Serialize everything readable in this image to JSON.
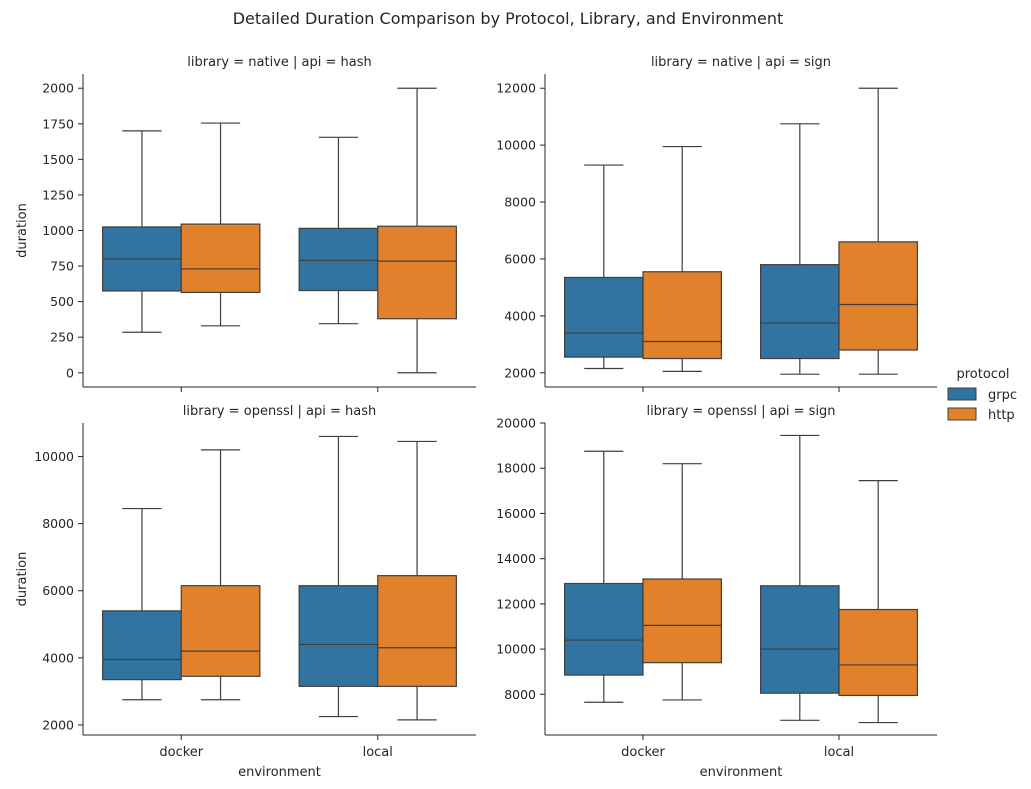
{
  "figure": {
    "title": "Detailed Duration Comparison by Protocol, Library, and Environment"
  },
  "legend": {
    "title": "protocol",
    "entries": [
      {
        "label": "grpc",
        "color": "#3274a1"
      },
      {
        "label": "http",
        "color": "#e1812c"
      }
    ]
  },
  "chart_data": [
    {
      "type": "box",
      "title": "library = native | api = hash",
      "xlabel": "",
      "ylabel": "duration",
      "categories": [
        "docker",
        "local"
      ],
      "ylim": [
        -100,
        2100
      ],
      "yticks": [
        0,
        250,
        500,
        750,
        1000,
        1250,
        1500,
        1750,
        2000
      ],
      "series": [
        {
          "name": "grpc",
          "color": "#3274a1",
          "boxes": [
            {
              "min": 285,
              "q1": 575,
              "median": 800,
              "q3": 1025,
              "max": 1700
            },
            {
              "min": 345,
              "q1": 578,
              "median": 790,
              "q3": 1015,
              "max": 1655
            }
          ]
        },
        {
          "name": "http",
          "color": "#e1812c",
          "boxes": [
            {
              "min": 330,
              "q1": 565,
              "median": 730,
              "q3": 1045,
              "max": 1755
            },
            {
              "min": 0,
              "q1": 380,
              "median": 785,
              "q3": 1030,
              "max": 2000
            }
          ]
        }
      ]
    },
    {
      "type": "box",
      "title": "library = native | api = sign",
      "xlabel": "",
      "ylabel": "",
      "categories": [
        "docker",
        "local"
      ],
      "ylim": [
        1500,
        12500
      ],
      "yticks": [
        2000,
        4000,
        6000,
        8000,
        10000,
        12000
      ],
      "series": [
        {
          "name": "grpc",
          "color": "#3274a1",
          "boxes": [
            {
              "min": 2150,
              "q1": 2550,
              "median": 3400,
              "q3": 5350,
              "max": 9300
            },
            {
              "min": 1950,
              "q1": 2500,
              "median": 3750,
              "q3": 5800,
              "max": 10750
            }
          ]
        },
        {
          "name": "http",
          "color": "#e1812c",
          "boxes": [
            {
              "min": 2050,
              "q1": 2500,
              "median": 3100,
              "q3": 5550,
              "max": 9950
            },
            {
              "min": 1950,
              "q1": 2800,
              "median": 4400,
              "q3": 6600,
              "max": 12000
            }
          ]
        }
      ]
    },
    {
      "type": "box",
      "title": "library = openssl | api = hash",
      "xlabel": "environment",
      "ylabel": "duration",
      "categories": [
        "docker",
        "local"
      ],
      "ylim": [
        1700,
        11000
      ],
      "yticks": [
        2000,
        4000,
        6000,
        8000,
        10000
      ],
      "series": [
        {
          "name": "grpc",
          "color": "#3274a1",
          "boxes": [
            {
              "min": 2750,
              "q1": 3350,
              "median": 3950,
              "q3": 5400,
              "max": 8450
            },
            {
              "min": 2250,
              "q1": 3150,
              "median": 4400,
              "q3": 6150,
              "max": 10600
            }
          ]
        },
        {
          "name": "http",
          "color": "#e1812c",
          "boxes": [
            {
              "min": 2750,
              "q1": 3450,
              "median": 4200,
              "q3": 6150,
              "max": 10200
            },
            {
              "min": 2150,
              "q1": 3150,
              "median": 4300,
              "q3": 6450,
              "max": 10450
            }
          ]
        }
      ]
    },
    {
      "type": "box",
      "title": "library = openssl | api = sign",
      "xlabel": "environment",
      "ylabel": "",
      "categories": [
        "docker",
        "local"
      ],
      "ylim": [
        6200,
        20000
      ],
      "yticks": [
        8000,
        10000,
        12000,
        14000,
        16000,
        18000,
        20000
      ],
      "series": [
        {
          "name": "grpc",
          "color": "#3274a1",
          "boxes": [
            {
              "min": 7650,
              "q1": 8850,
              "median": 10400,
              "q3": 12900,
              "max": 18750
            },
            {
              "min": 6850,
              "q1": 8050,
              "median": 10000,
              "q3": 12800,
              "max": 19450
            }
          ]
        },
        {
          "name": "http",
          "color": "#e1812c",
          "boxes": [
            {
              "min": 7750,
              "q1": 9400,
              "median": 11050,
              "q3": 13100,
              "max": 18200
            },
            {
              "min": 6750,
              "q1": 7950,
              "median": 9300,
              "q3": 11750,
              "max": 17450
            }
          ]
        }
      ]
    }
  ]
}
